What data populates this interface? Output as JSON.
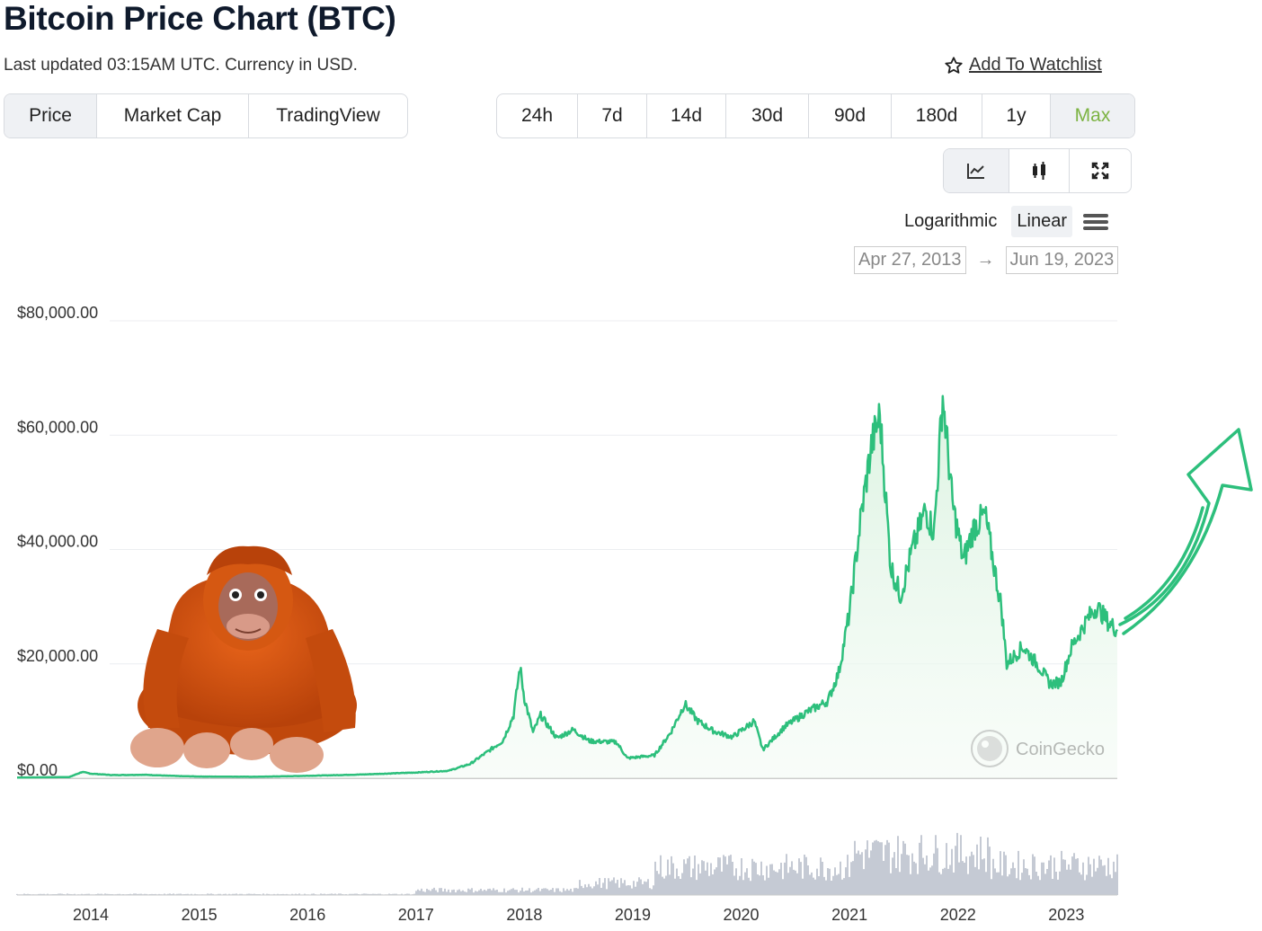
{
  "header": {
    "title": "Bitcoin Price Chart (BTC)",
    "subtitle": "Last updated 03:15AM UTC. Currency in USD.",
    "watchlist_label": "Add To Watchlist"
  },
  "tabs": [
    "Price",
    "Market Cap",
    "TradingView"
  ],
  "active_tab": "Price",
  "ranges": [
    "24h",
    "7d",
    "14d",
    "30d",
    "90d",
    "180d",
    "1y",
    "Max"
  ],
  "active_range": "Max",
  "chart_types": [
    "line-chart-icon",
    "candlestick-icon",
    "fullscreen-icon"
  ],
  "scale": {
    "log_label": "Logarithmic",
    "linear_label": "Linear",
    "active": "Linear"
  },
  "date_range": {
    "from": "Apr 27, 2013",
    "to": "Jun 19, 2023"
  },
  "watermark": "CoinGecko",
  "colors": {
    "line": "#2dbf7c",
    "area": "#e6f6ea",
    "volume": "#c5cad4",
    "active_range": "#7cb342",
    "arrow": "#2dbf7c",
    "orangutan": "#d4570e"
  },
  "decoration": "orangutan-emoji and hand-drawn upward arrow",
  "chart_data": {
    "type": "line",
    "title": "Bitcoin Price Chart (BTC)",
    "ylabel": "",
    "xlabel": "",
    "ylim": [
      0,
      80000
    ],
    "yticks": [
      "$80,000.00",
      "$60,000.00",
      "$40,000.00",
      "$20,000.00",
      "$0.00"
    ],
    "ytick_values": [
      80000,
      60000,
      40000,
      20000,
      0
    ],
    "xlim": [
      2013.32,
      2023.47
    ],
    "xticks": [
      "2014",
      "2015",
      "2016",
      "2017",
      "2018",
      "2019",
      "2020",
      "2021",
      "2022",
      "2023"
    ],
    "xtick_values": [
      2014,
      2015,
      2016,
      2017,
      2018,
      2019,
      2020,
      2021,
      2022,
      2023
    ],
    "grid": true,
    "series": [
      {
        "values": [
          [
            2013.32,
            130
          ],
          [
            2013.8,
            200
          ],
          [
            2013.92,
            1100
          ],
          [
            2014.0,
            800
          ],
          [
            2014.2,
            550
          ],
          [
            2014.5,
            600
          ],
          [
            2014.8,
            380
          ],
          [
            2015.0,
            300
          ],
          [
            2015.5,
            250
          ],
          [
            2016.0,
            420
          ],
          [
            2016.5,
            650
          ],
          [
            2017.0,
            1000
          ],
          [
            2017.3,
            1300
          ],
          [
            2017.5,
            2500
          ],
          [
            2017.65,
            4500
          ],
          [
            2017.8,
            6500
          ],
          [
            2017.9,
            11000
          ],
          [
            2017.96,
            19500
          ],
          [
            2018.0,
            14000
          ],
          [
            2018.08,
            8000
          ],
          [
            2018.15,
            11000
          ],
          [
            2018.3,
            7000
          ],
          [
            2018.45,
            8500
          ],
          [
            2018.6,
            6500
          ],
          [
            2018.85,
            6300
          ],
          [
            2018.95,
            3500
          ],
          [
            2019.2,
            4000
          ],
          [
            2019.35,
            8000
          ],
          [
            2019.48,
            13000
          ],
          [
            2019.6,
            10000
          ],
          [
            2019.75,
            8200
          ],
          [
            2019.92,
            7200
          ],
          [
            2020.12,
            10000
          ],
          [
            2020.2,
            5000
          ],
          [
            2020.4,
            9000
          ],
          [
            2020.6,
            11500
          ],
          [
            2020.8,
            13500
          ],
          [
            2020.9,
            18500
          ],
          [
            2021.0,
            29000
          ],
          [
            2021.1,
            45000
          ],
          [
            2021.2,
            58000
          ],
          [
            2021.28,
            63500
          ],
          [
            2021.38,
            37000
          ],
          [
            2021.47,
            32000
          ],
          [
            2021.58,
            40000
          ],
          [
            2021.7,
            47000
          ],
          [
            2021.78,
            43000
          ],
          [
            2021.86,
            67000
          ],
          [
            2021.95,
            48000
          ],
          [
            2022.05,
            38000
          ],
          [
            2022.15,
            44000
          ],
          [
            2022.25,
            46000
          ],
          [
            2022.4,
            30000
          ],
          [
            2022.45,
            20000
          ],
          [
            2022.6,
            23000
          ],
          [
            2022.75,
            19500
          ],
          [
            2022.85,
            16500
          ],
          [
            2022.95,
            16800
          ],
          [
            2023.05,
            23000
          ],
          [
            2023.2,
            28000
          ],
          [
            2023.28,
            30000
          ],
          [
            2023.4,
            27000
          ],
          [
            2023.47,
            26000
          ]
        ]
      }
    ]
  }
}
